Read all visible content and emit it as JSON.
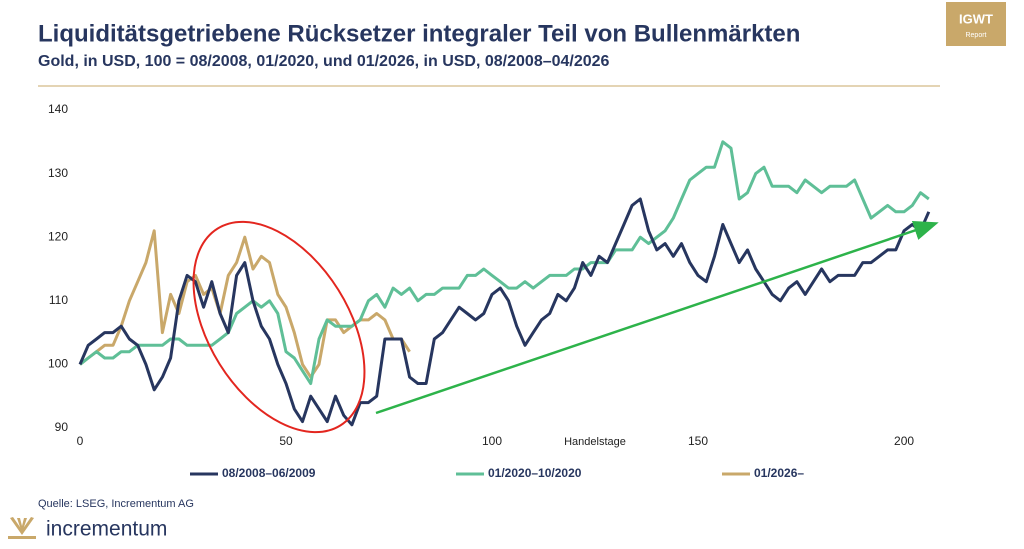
{
  "chart_data": {
    "type": "line",
    "title": "Liquiditätsgetriebene Rücksetzer integraler Teil von Bullenmärkten",
    "subtitle": "Gold, in USD, 100 = 08/2008, 01/2020, und 01/2026, in USD, 08/2008–04/2026",
    "x_label": "Handelstage",
    "x": [
      0,
      2,
      4,
      6,
      8,
      10,
      12,
      14,
      16,
      18,
      20,
      22,
      24,
      26,
      28,
      30,
      32,
      34,
      36,
      38,
      40,
      42,
      44,
      46,
      48,
      50,
      52,
      54,
      56,
      58,
      60,
      62,
      64,
      66,
      68,
      70,
      72,
      74,
      76,
      78,
      80,
      82,
      84,
      86,
      88,
      90,
      92,
      94,
      96,
      98,
      100,
      102,
      104,
      106,
      108,
      110,
      112,
      114,
      116,
      118,
      120,
      122,
      124,
      126,
      128,
      130,
      132,
      134,
      136,
      138,
      140,
      142,
      144,
      146,
      148,
      150,
      152,
      154,
      156,
      158,
      160,
      162,
      164,
      166,
      168,
      170,
      172,
      174,
      176,
      178,
      180,
      182,
      184,
      186,
      188,
      190,
      192,
      194,
      196,
      198,
      200,
      202,
      204,
      206
    ],
    "series": [
      {
        "name": "08/2008–06/2009",
        "color": "#27365f",
        "values": [
          100,
          103,
          104,
          105,
          105,
          106,
          104,
          103,
          100,
          96,
          98,
          101,
          110,
          114,
          113,
          109,
          113,
          108,
          105,
          114,
          116,
          110,
          106,
          104,
          100,
          97,
          93,
          91,
          95,
          93,
          91,
          95,
          92,
          90.5,
          94,
          94,
          95,
          104,
          104,
          104,
          98,
          97,
          97,
          104,
          105,
          107,
          109,
          108,
          107,
          108,
          111,
          112,
          110,
          106,
          103,
          105,
          107,
          108,
          111,
          110,
          112,
          116,
          114,
          117,
          116,
          119,
          122,
          125,
          126,
          121,
          118,
          119,
          117,
          119,
          116,
          114,
          113,
          117,
          122,
          119,
          116,
          118,
          115,
          113,
          111,
          110,
          112,
          113,
          111,
          113,
          115,
          113,
          114,
          114,
          114,
          116,
          116,
          117,
          118,
          118,
          121,
          122,
          121,
          124
        ]
      },
      {
        "name": "01/2020–10/2020",
        "color": "#5fbf97",
        "values": [
          100,
          101,
          102,
          101,
          101,
          102,
          102,
          103,
          103,
          103,
          103,
          104,
          104,
          103,
          103,
          103,
          103,
          104,
          105,
          108,
          109,
          110,
          109,
          110,
          108,
          102,
          101,
          99,
          97,
          104,
          107,
          106,
          106,
          106,
          107,
          110,
          111,
          109,
          112,
          111,
          112,
          110,
          111,
          111,
          112,
          112,
          112,
          114,
          114,
          115,
          114,
          113,
          112,
          112,
          113,
          112,
          113,
          114,
          114,
          114,
          115,
          115,
          116,
          116,
          116,
          118,
          118,
          118,
          120,
          119,
          120,
          121,
          123,
          126,
          129,
          130,
          131,
          131,
          135,
          134,
          126,
          127,
          130,
          131,
          128,
          128,
          128,
          127,
          129,
          128,
          127,
          128,
          128,
          128,
          129,
          126,
          123,
          124,
          125,
          124,
          124,
          125,
          127,
          126
        ]
      },
      {
        "name": "01/2026–",
        "color": "#c9a86a",
        "values": [
          100,
          101,
          102,
          103,
          103,
          106,
          110,
          113,
          116,
          121,
          105,
          111,
          108,
          113,
          114,
          111,
          112,
          108,
          114,
          116,
          120,
          115,
          117,
          116,
          111,
          109,
          105,
          100,
          98,
          100,
          107,
          107,
          105,
          106,
          107,
          107,
          108,
          107,
          104,
          104,
          102,
          null,
          null,
          null,
          null,
          null,
          null,
          null,
          null,
          null,
          null,
          null,
          null,
          null,
          null,
          null,
          null,
          null,
          null,
          null,
          null,
          null,
          null,
          null,
          null,
          null,
          null,
          null,
          null,
          null,
          null,
          null,
          null,
          null,
          null,
          null,
          null,
          null,
          null,
          null,
          null,
          null,
          null,
          null,
          null,
          null,
          null,
          null,
          null,
          null,
          null,
          null,
          null,
          null,
          null,
          null,
          null,
          null,
          null,
          null,
          null,
          null,
          null,
          null
        ]
      }
    ],
    "xlim": [
      0,
      208
    ],
    "xticks": [
      0,
      50,
      100,
      150,
      200
    ],
    "ylim": [
      90,
      140
    ],
    "yticks": [
      90,
      100,
      110,
      120,
      130,
      140
    ],
    "grid": false,
    "legend": "bottom"
  },
  "source": "Quelle: LSEG, Incrementum AG",
  "badge": {
    "title": "IGWT",
    "subtitle": "Report"
  },
  "logo": "incrementum"
}
